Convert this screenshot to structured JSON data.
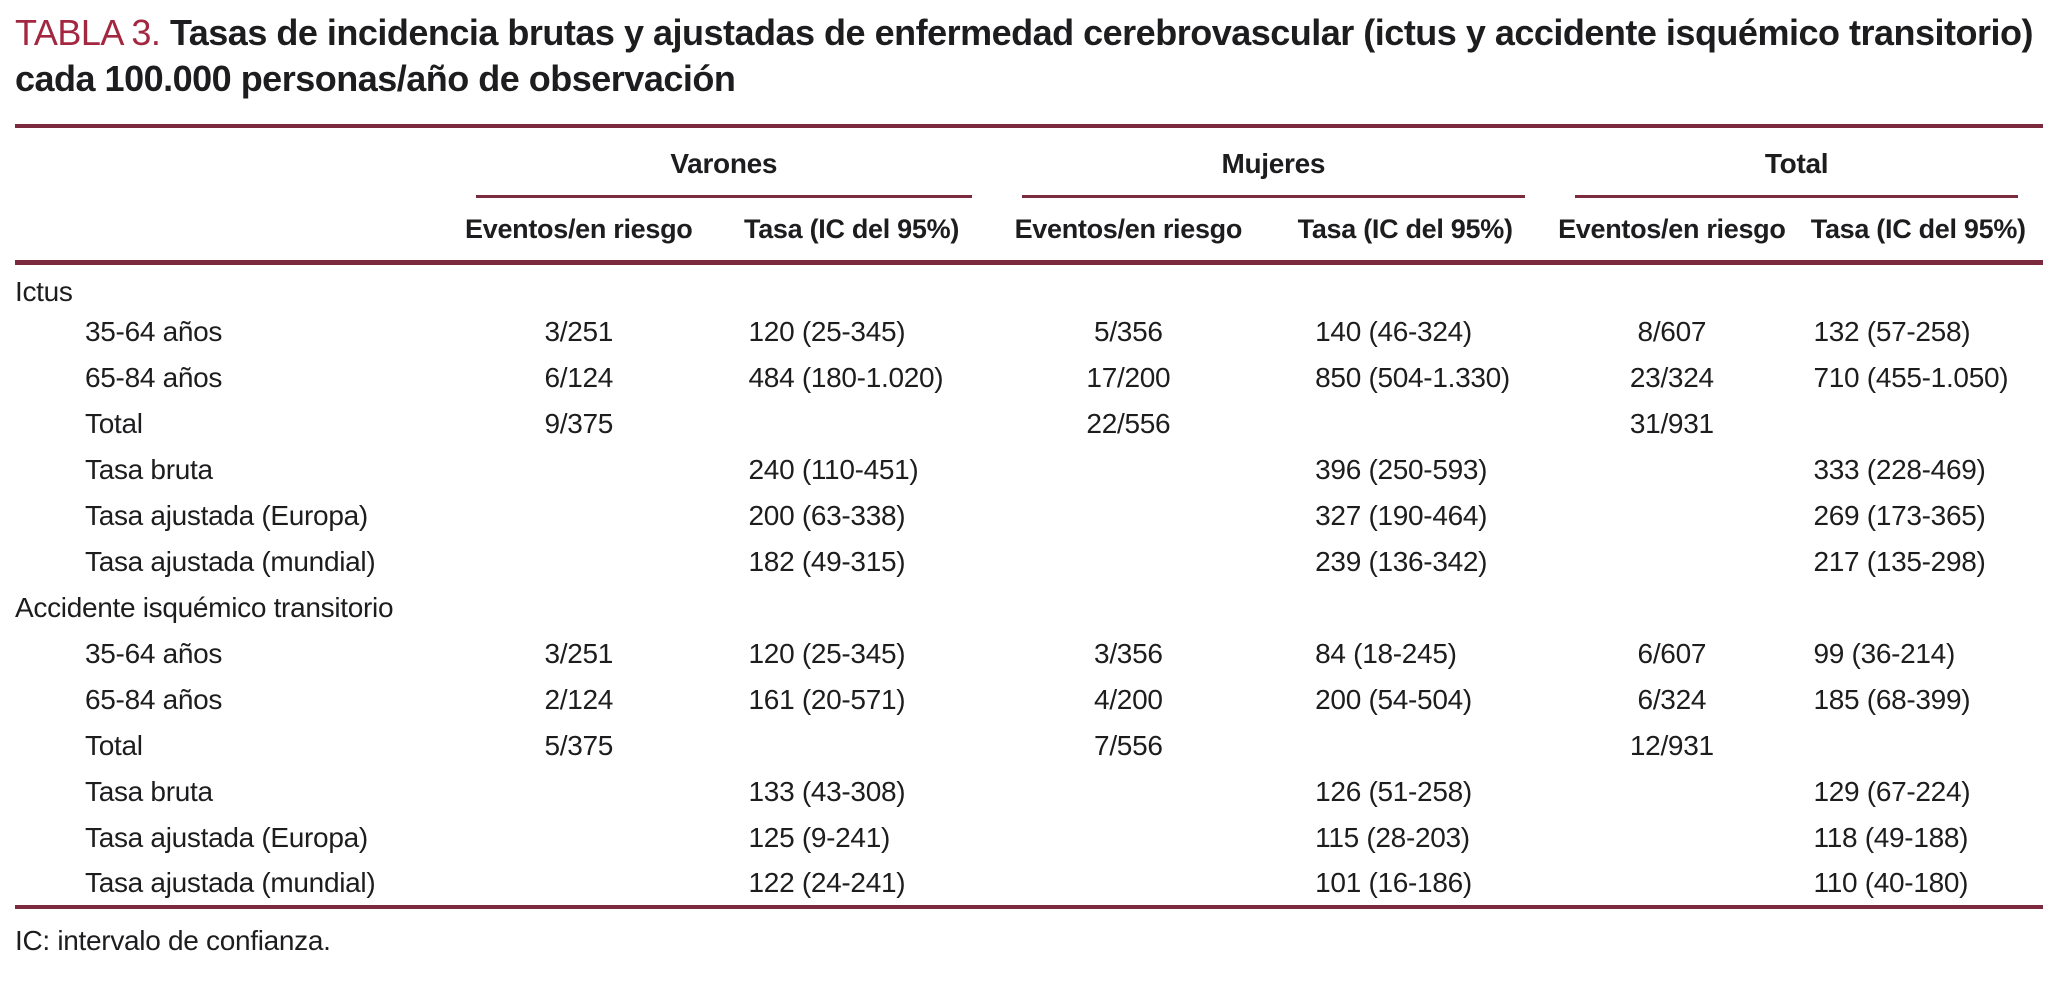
{
  "title": {
    "label": "TABLA 3.",
    "text": "Tasas de incidencia brutas y ajustadas de enfermedad cerebrovascular (ictus y accidente isquémico transitorio) cada 100.000 personas/año de observación"
  },
  "colors": {
    "accent": "#A32740",
    "rule": "#7C2B3E",
    "text": "#1D1D1F"
  },
  "table": {
    "groups": [
      {
        "label": "Varones"
      },
      {
        "label": "Mujeres"
      },
      {
        "label": "Total"
      }
    ],
    "subheaders": [
      "Eventos/en riesgo",
      "Tasa (IC del 95%)"
    ],
    "rows": [
      {
        "label": "Ictus",
        "type": "section",
        "cells": [
          "",
          "",
          "",
          "",
          "",
          ""
        ]
      },
      {
        "label": "35-64 años",
        "type": "indent",
        "cells": [
          "3/251",
          "120 (25-345)",
          "5/356",
          "140 (46-324)",
          "8/607",
          "132 (57-258)"
        ]
      },
      {
        "label": "65-84 años",
        "type": "indent",
        "cells": [
          "6/124",
          "484 (180-1.020)",
          "17/200",
          "850 (504-1.330)",
          "23/324",
          "710 (455-1.050)"
        ]
      },
      {
        "label": "Total",
        "type": "indent",
        "cells": [
          "9/375",
          "",
          "22/556",
          "",
          "31/931",
          ""
        ]
      },
      {
        "label": "Tasa bruta",
        "type": "indent",
        "cells": [
          "",
          "240 (110-451)",
          "",
          "396 (250-593)",
          "",
          "333 (228-469)"
        ]
      },
      {
        "label": "Tasa ajustada (Europa)",
        "type": "indent",
        "cells": [
          "",
          "200 (63-338)",
          "",
          "327 (190-464)",
          "",
          "269 (173-365)"
        ]
      },
      {
        "label": "Tasa ajustada (mundial)",
        "type": "indent",
        "cells": [
          "",
          "182 (49-315)",
          "",
          "239 (136-342)",
          "",
          "217 (135-298)"
        ]
      },
      {
        "label": "Accidente isquémico transitorio",
        "type": "section",
        "cells": [
          "",
          "",
          "",
          "",
          "",
          ""
        ]
      },
      {
        "label": "35-64 años",
        "type": "indent",
        "cells": [
          "3/251",
          "120 (25-345)",
          "3/356",
          "84 (18-245)",
          "6/607",
          "99 (36-214)"
        ]
      },
      {
        "label": "65-84 años",
        "type": "indent",
        "cells": [
          "2/124",
          "161 (20-571)",
          "4/200",
          "200 (54-504)",
          "6/324",
          "185 (68-399)"
        ]
      },
      {
        "label": "Total",
        "type": "indent",
        "cells": [
          "5/375",
          "",
          "7/556",
          "",
          "12/931",
          ""
        ]
      },
      {
        "label": "Tasa bruta",
        "type": "indent",
        "cells": [
          "",
          "133 (43-308)",
          "",
          "126 (51-258)",
          "",
          "129 (67-224)"
        ]
      },
      {
        "label": "Tasa ajustada (Europa)",
        "type": "indent",
        "cells": [
          "",
          "125 (9-241)",
          "",
          "115 (28-203)",
          "",
          "118 (49-188)"
        ]
      },
      {
        "label": "Tasa ajustada (mundial)",
        "type": "indent",
        "cells": [
          "",
          "122 (24-241)",
          "",
          "101 (16-186)",
          "",
          "110 (40-180)"
        ]
      }
    ],
    "footnote": "IC: intervalo de confianza."
  }
}
